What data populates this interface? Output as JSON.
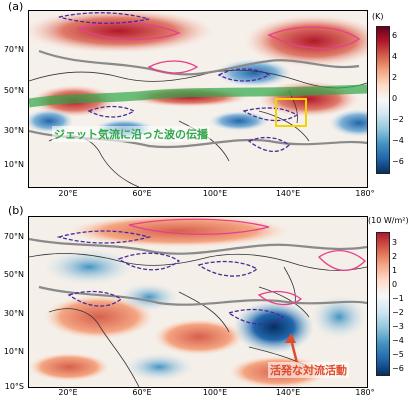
{
  "panels": [
    {
      "label": "(a)",
      "yticks": [
        "70°N",
        "50°N",
        "30°N",
        "10°N"
      ],
      "xticks": [
        "20°E",
        "60°E",
        "100°E",
        "140°E",
        "180°"
      ],
      "colorbar": {
        "unit": "(K)",
        "ticks": [
          "6",
          "4",
          "2",
          "0",
          "−2",
          "−4",
          "−6"
        ]
      },
      "annotation": "ジェット気流に沿った波の伝播"
    },
    {
      "label": "(b)",
      "yticks": [
        "70°N",
        "50°N",
        "30°N",
        "10°N",
        "10°S"
      ],
      "xticks": [
        "20°E",
        "60°E",
        "100°E",
        "140°E",
        "180°"
      ],
      "colorbar": {
        "unit": "(10 W/m²)",
        "ticks": [
          "3",
          "2",
          "1",
          "0",
          "−1",
          "−2",
          "−3",
          "−4",
          "−5",
          "−6"
        ]
      },
      "annotation": "活発な対流活動"
    }
  ],
  "colors": {
    "warm": "#b2182b",
    "cool": "#2166ac",
    "jet": "#2fa84a",
    "contour_pos": "#e83e8c",
    "contour_neg": "#4b2a9a",
    "zero_line": "#8a8a8a",
    "box": "#f2d500"
  },
  "chart_data": [
    {
      "type": "heatmap",
      "title": "",
      "colorbar_label": "(K)",
      "vmin": -6,
      "vmax": 6,
      "x_range": [
        "0°E",
        "180°"
      ],
      "y_range": [
        "0°N",
        "80°N"
      ]
    },
    {
      "type": "heatmap",
      "title": "",
      "colorbar_label": "(10 W/m²)",
      "vmin": -6,
      "vmax": 3,
      "x_range": [
        "0°E",
        "180°"
      ],
      "y_range": [
        "10°S",
        "75°N"
      ]
    }
  ]
}
